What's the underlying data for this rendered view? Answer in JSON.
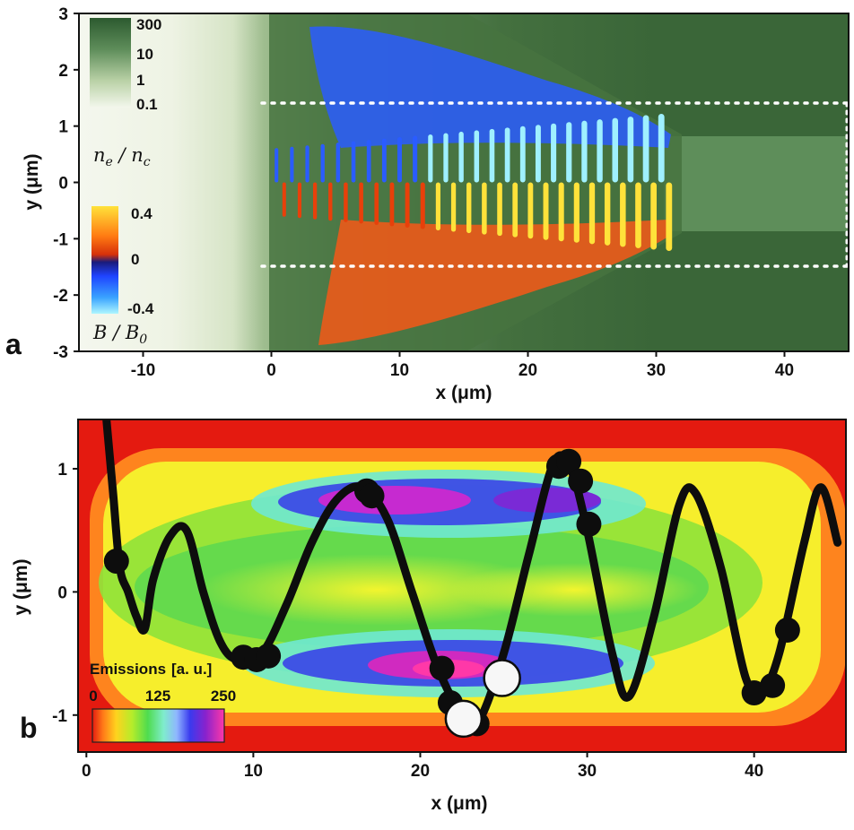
{
  "chart_data": [
    {
      "type": "heatmap",
      "panel_label": "a",
      "xlabel": "x (μm)",
      "ylabel": "y (μm)",
      "xlim": [
        -15,
        45
      ],
      "ylim": [
        -3,
        3
      ],
      "xticks": [
        -10,
        0,
        10,
        20,
        30,
        40
      ],
      "yticks": [
        -3,
        -2,
        -1,
        0,
        1,
        2,
        3
      ],
      "channel_boundaries_y": [
        -1.5,
        1.5
      ],
      "density_colorbar": {
        "label": "n_e / n_c",
        "label_main": "n",
        "label_sub1": "e",
        "label_mid": " / n",
        "label_sub2": "c",
        "ticks": [
          "300",
          "10",
          "1",
          "0.1"
        ],
        "colors": [
          "#2c5a2f",
          "#eef3e6"
        ]
      },
      "field_colorbar": {
        "label": "B / B",
        "label_sub": "0",
        "ticks": [
          "0.4",
          "0",
          "-0.4"
        ],
        "colors": [
          "#ffe23a",
          "#e8400a",
          "#1a1b7a",
          "#1f44ff",
          "#aef6ff"
        ]
      },
      "field_oscillation": {
        "start_x": 0,
        "end_x": 32,
        "period": 1.2,
        "stripe_count": 26
      }
    },
    {
      "type": "heatmap",
      "panel_label": "b",
      "xlabel": "x (μm)",
      "ylabel": "y (μm)",
      "xlim": [
        -0.5,
        45.5
      ],
      "ylim": [
        -1.3,
        1.4
      ],
      "xticks": [
        0,
        10,
        20,
        30,
        40
      ],
      "yticks": [
        -1,
        0,
        1
      ],
      "colorbar": {
        "title": "Emissions",
        "units": "[a. u.]",
        "ticks": [
          "0",
          "125",
          "250"
        ],
        "range": [
          0,
          250
        ],
        "colors": [
          "#e41a10",
          "#ffa51e",
          "#f7f72a",
          "#4fdc4f",
          "#7feccc",
          "#8fb6ff",
          "#1a1ad4",
          "#cc26cc",
          "#ff38a8"
        ]
      },
      "electron_trajectory": {
        "x": [
          1.2,
          1.6,
          2.0,
          2.5,
          3.0,
          3.5,
          4.0,
          5.0,
          6.0,
          7.0,
          8.0,
          9.0,
          10.5,
          12.0,
          13.5,
          15.0,
          16.5,
          18.0,
          19.5,
          21.0,
          22.5,
          23.5,
          25.0,
          26.5,
          28.0,
          29.0,
          30.0,
          31.5,
          32.5,
          34.0,
          35.5,
          36.5,
          38.0,
          39.5,
          40.5,
          41.5,
          43.0,
          44.0,
          45.0
        ],
        "y": [
          1.4,
          0.8,
          0.2,
          0.0,
          -0.2,
          -0.3,
          0.1,
          0.45,
          0.5,
          0.0,
          -0.4,
          -0.55,
          -0.5,
          -0.1,
          0.4,
          0.75,
          0.85,
          0.6,
          0.0,
          -0.6,
          -1.0,
          -1.05,
          -0.5,
          0.3,
          1.05,
          1.0,
          0.5,
          -0.5,
          -0.85,
          -0.2,
          0.7,
          0.8,
          0.2,
          -0.7,
          -0.8,
          -0.5,
          0.4,
          0.85,
          0.4
        ]
      },
      "emission_points_black": [
        {
          "x": 1.8,
          "y": 0.25
        },
        {
          "x": 9.4,
          "y": -0.53
        },
        {
          "x": 10.2,
          "y": -0.55
        },
        {
          "x": 10.9,
          "y": -0.52
        },
        {
          "x": 16.8,
          "y": 0.82
        },
        {
          "x": 17.1,
          "y": 0.78
        },
        {
          "x": 21.3,
          "y": -0.62
        },
        {
          "x": 21.8,
          "y": -0.9
        },
        {
          "x": 23.4,
          "y": -1.07
        },
        {
          "x": 28.3,
          "y": 1.02
        },
        {
          "x": 28.9,
          "y": 1.06
        },
        {
          "x": 29.6,
          "y": 0.9
        },
        {
          "x": 30.1,
          "y": 0.55
        },
        {
          "x": 40.0,
          "y": -0.82
        },
        {
          "x": 41.1,
          "y": -0.76
        },
        {
          "x": 42.0,
          "y": -0.31
        }
      ],
      "emission_points_white": [
        {
          "x": 22.6,
          "y": -1.03
        },
        {
          "x": 24.9,
          "y": -0.7
        }
      ]
    }
  ]
}
